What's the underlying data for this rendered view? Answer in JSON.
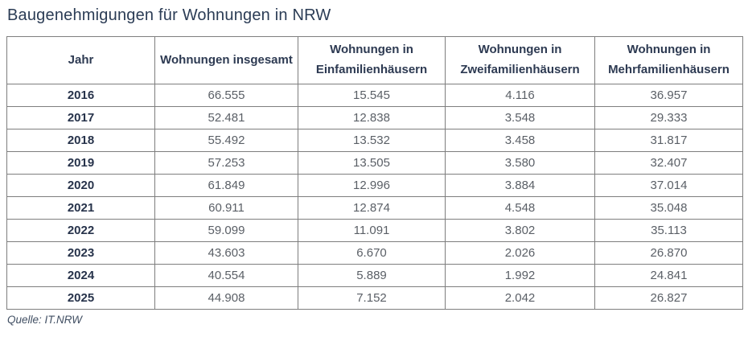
{
  "title": "Baugenehmigungen für Wohnungen in NRW",
  "source": "Quelle: IT.NRW",
  "colors": {
    "title_text": "#2b3c55",
    "header_text": "#2d3a52",
    "year_text": "#27334b",
    "value_text": "#5a5f66",
    "border": "#7e7e7e",
    "background": "#ffffff"
  },
  "table": {
    "columns": [
      "Jahr",
      "Wohnungen insgesamt",
      "Wohnungen in Einfamilienhäusern",
      "Wohnungen in Zweifamilienhäusern",
      "Wohnungen in Mehrfamilienhäusern"
    ],
    "rows": [
      [
        "2016",
        "66.555",
        "15.545",
        "4.116",
        "36.957"
      ],
      [
        "2017",
        "52.481",
        "12.838",
        "3.548",
        "29.333"
      ],
      [
        "2018",
        "55.492",
        "13.532",
        "3.458",
        "31.817"
      ],
      [
        "2019",
        "57.253",
        "13.505",
        "3.580",
        "32.407"
      ],
      [
        "2020",
        "61.849",
        "12.996",
        "3.884",
        "37.014"
      ],
      [
        "2021",
        "60.911",
        "12.874",
        "4.548",
        "35.048"
      ],
      [
        "2022",
        "59.099",
        "11.091",
        "3.802",
        "35.113"
      ],
      [
        "2023",
        "43.603",
        "6.670",
        "2.026",
        "26.870"
      ],
      [
        "2024",
        "40.554",
        "5.889",
        "1.992",
        "24.841"
      ],
      [
        "2025",
        "44.908",
        "7.152",
        "2.042",
        "26.827"
      ]
    ]
  },
  "chart_data": {
    "type": "table",
    "title": "Baugenehmigungen für Wohnungen in NRW",
    "columns": [
      "Jahr",
      "Wohnungen insgesamt",
      "Wohnungen in Einfamilienhäusern",
      "Wohnungen in Zweifamilienhäusern",
      "Wohnungen in Mehrfamilienhäusern"
    ],
    "rows": [
      [
        2016,
        66555,
        15545,
        4116,
        36957
      ],
      [
        2017,
        52481,
        12838,
        3548,
        29333
      ],
      [
        2018,
        55492,
        13532,
        3458,
        31817
      ],
      [
        2019,
        57253,
        13505,
        3580,
        32407
      ],
      [
        2020,
        61849,
        12996,
        3884,
        37014
      ],
      [
        2021,
        60911,
        12874,
        4548,
        35048
      ],
      [
        2022,
        59099,
        11091,
        3802,
        35113
      ],
      [
        2023,
        43603,
        6670,
        2026,
        26870
      ],
      [
        2024,
        40554,
        5889,
        1992,
        24841
      ],
      [
        2025,
        44908,
        7152,
        2042,
        26827
      ]
    ],
    "source": "Quelle: IT.NRW",
    "number_format": "de-DE thousands separator '.'"
  }
}
